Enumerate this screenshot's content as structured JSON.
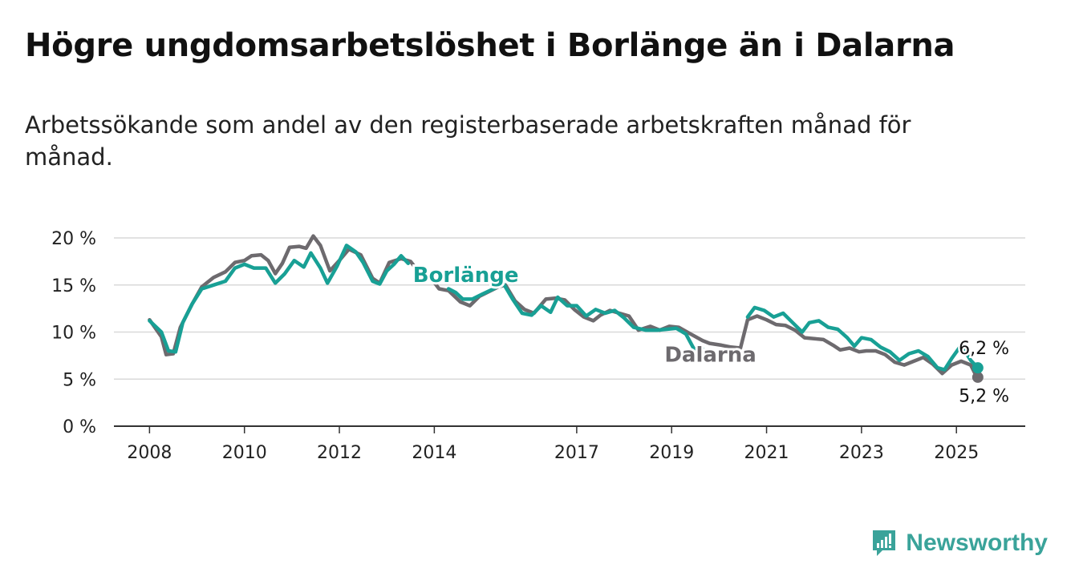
{
  "title": "Högre ungdomsarbetslöshet i Borlänge än i Dalarna",
  "subtitle": "Arbetssökande som andel av den registerbaserade arbetskraften månad för månad.",
  "brand": {
    "name": "Newsworthy",
    "icon": "newsworthy-logo-icon",
    "color": "#3aa39a"
  },
  "chart_data": {
    "type": "line",
    "title": "Högre ungdomsarbetslöshet i Borlänge än i Dalarna",
    "subtitle": "Arbetssökande som andel av den registerbaserade arbetskraften månad för månad.",
    "xlabel": "",
    "ylabel": "",
    "ylim": [
      0,
      20
    ],
    "yticks": [
      0,
      5,
      10,
      15,
      20
    ],
    "ytick_labels": [
      "0 %",
      "5 %",
      "10 %",
      "15 %",
      "20 %"
    ],
    "xticks": [
      2008,
      2010,
      2012,
      2014,
      2017,
      2019,
      2021,
      2023,
      2025
    ],
    "xtick_labels": [
      "2008",
      "2010",
      "2012",
      "2014",
      "2017",
      "2019",
      "2021",
      "2023",
      "2025"
    ],
    "grid": true,
    "series": [
      {
        "name": "Dalarna",
        "color": "#6d6a6e",
        "label_position": "inline",
        "end_label": "5,2 %",
        "points": [
          [
            2008.0,
            11.3
          ],
          [
            2008.25,
            9.5
          ],
          [
            2008.35,
            7.6
          ],
          [
            2008.5,
            7.7
          ],
          [
            2008.65,
            10.5
          ],
          [
            2008.9,
            13.0
          ],
          [
            2009.1,
            14.8
          ],
          [
            2009.35,
            15.8
          ],
          [
            2009.6,
            16.4
          ],
          [
            2009.8,
            17.4
          ],
          [
            2010.0,
            17.6
          ],
          [
            2010.15,
            18.1
          ],
          [
            2010.35,
            18.2
          ],
          [
            2010.5,
            17.6
          ],
          [
            2010.65,
            16.2
          ],
          [
            2010.8,
            17.3
          ],
          [
            2010.95,
            19.0
          ],
          [
            2011.15,
            19.1
          ],
          [
            2011.3,
            18.9
          ],
          [
            2011.45,
            20.2
          ],
          [
            2011.6,
            19.2
          ],
          [
            2011.8,
            16.5
          ],
          [
            2012.0,
            17.6
          ],
          [
            2012.2,
            18.8
          ],
          [
            2012.45,
            18.2
          ],
          [
            2012.7,
            15.7
          ],
          [
            2012.85,
            15.2
          ],
          [
            2013.05,
            17.4
          ],
          [
            2013.3,
            17.8
          ],
          [
            2013.5,
            17.5
          ],
          [
            2013.7,
            16.2
          ],
          [
            2013.95,
            15.6
          ],
          [
            2014.1,
            14.6
          ],
          [
            2014.3,
            14.4
          ],
          [
            2014.55,
            13.2
          ],
          [
            2014.75,
            12.8
          ],
          [
            2014.95,
            13.8
          ],
          [
            2015.15,
            14.3
          ],
          [
            2015.35,
            14.8
          ],
          [
            2015.5,
            15.0
          ],
          [
            2015.7,
            13.3
          ],
          [
            2015.9,
            12.4
          ],
          [
            2016.1,
            12.0
          ],
          [
            2016.35,
            13.5
          ],
          [
            2016.55,
            13.6
          ],
          [
            2016.75,
            13.4
          ],
          [
            2016.95,
            12.4
          ],
          [
            2017.15,
            11.6
          ],
          [
            2017.35,
            11.2
          ],
          [
            2017.5,
            11.8
          ],
          [
            2017.7,
            12.3
          ],
          [
            2017.9,
            12.0
          ],
          [
            2018.1,
            11.7
          ],
          [
            2018.3,
            10.2
          ],
          [
            2018.55,
            10.6
          ],
          [
            2018.75,
            10.2
          ],
          [
            2018.95,
            10.6
          ],
          [
            2019.15,
            10.5
          ],
          [
            2019.4,
            9.8
          ],
          [
            2019.65,
            9.1
          ],
          [
            2019.8,
            8.8
          ],
          [
            2020.05,
            8.6
          ],
          [
            2020.25,
            8.4
          ],
          [
            2020.45,
            8.3
          ],
          [
            2020.6,
            11.3
          ],
          [
            2020.8,
            11.7
          ],
          [
            2021.0,
            11.3
          ],
          [
            2021.2,
            10.8
          ],
          [
            2021.4,
            10.7
          ],
          [
            2021.6,
            10.2
          ],
          [
            2021.8,
            9.4
          ],
          [
            2022.0,
            9.3
          ],
          [
            2022.2,
            9.2
          ],
          [
            2022.4,
            8.6
          ],
          [
            2022.55,
            8.1
          ],
          [
            2022.75,
            8.3
          ],
          [
            2022.95,
            7.9
          ],
          [
            2023.1,
            8.0
          ],
          [
            2023.3,
            8.0
          ],
          [
            2023.5,
            7.6
          ],
          [
            2023.7,
            6.8
          ],
          [
            2023.9,
            6.5
          ],
          [
            2024.1,
            6.9
          ],
          [
            2024.3,
            7.3
          ],
          [
            2024.5,
            6.6
          ],
          [
            2024.7,
            5.6
          ],
          [
            2024.9,
            6.5
          ],
          [
            2025.1,
            6.9
          ],
          [
            2025.3,
            6.5
          ],
          [
            2025.4,
            5.5
          ],
          [
            2025.45,
            5.2
          ]
        ]
      },
      {
        "name": "Borlänge",
        "color": "#18a095",
        "label_position": "inline",
        "end_label": "6,2 %",
        "points": [
          [
            2008.0,
            11.2
          ],
          [
            2008.25,
            10.0
          ],
          [
            2008.4,
            8.0
          ],
          [
            2008.55,
            7.9
          ],
          [
            2008.7,
            11.0
          ],
          [
            2008.9,
            13.0
          ],
          [
            2009.1,
            14.6
          ],
          [
            2009.35,
            15.0
          ],
          [
            2009.6,
            15.4
          ],
          [
            2009.8,
            16.8
          ],
          [
            2010.0,
            17.2
          ],
          [
            2010.2,
            16.8
          ],
          [
            2010.45,
            16.8
          ],
          [
            2010.65,
            15.2
          ],
          [
            2010.85,
            16.2
          ],
          [
            2011.05,
            17.6
          ],
          [
            2011.25,
            16.9
          ],
          [
            2011.4,
            18.4
          ],
          [
            2011.6,
            16.8
          ],
          [
            2011.75,
            15.2
          ],
          [
            2011.95,
            17.0
          ],
          [
            2012.15,
            19.2
          ],
          [
            2012.35,
            18.5
          ],
          [
            2012.5,
            17.4
          ],
          [
            2012.7,
            15.4
          ],
          [
            2012.85,
            15.1
          ],
          [
            2013.0,
            16.5
          ],
          [
            2013.15,
            17.2
          ],
          [
            2013.3,
            18.1
          ],
          [
            2013.45,
            17.3
          ],
          [
            2014.3,
            14.6
          ],
          [
            2014.45,
            14.2
          ],
          [
            2014.6,
            13.5
          ],
          [
            2014.8,
            13.5
          ],
          [
            2015.0,
            14.0
          ],
          [
            2015.25,
            14.6
          ],
          [
            2015.45,
            15.2
          ],
          [
            2015.65,
            13.5
          ],
          [
            2015.85,
            12.0
          ],
          [
            2016.05,
            11.8
          ],
          [
            2016.25,
            12.8
          ],
          [
            2016.45,
            12.1
          ],
          [
            2016.6,
            13.7
          ],
          [
            2016.8,
            12.8
          ],
          [
            2017.0,
            12.8
          ],
          [
            2017.2,
            11.7
          ],
          [
            2017.4,
            12.4
          ],
          [
            2017.6,
            12.0
          ],
          [
            2017.8,
            12.3
          ],
          [
            2018.0,
            11.5
          ],
          [
            2018.2,
            10.5
          ],
          [
            2018.45,
            10.2
          ],
          [
            2018.7,
            10.2
          ],
          [
            2018.9,
            10.3
          ],
          [
            2019.1,
            10.4
          ],
          [
            2019.3,
            9.8
          ],
          [
            2019.45,
            8.4
          ],
          [
            2019.55,
            7.7
          ],
          [
            2019.65,
            8.2
          ],
          [
            2020.6,
            11.6
          ],
          [
            2020.75,
            12.6
          ],
          [
            2020.95,
            12.3
          ],
          [
            2021.15,
            11.6
          ],
          [
            2021.35,
            12.0
          ],
          [
            2021.55,
            11.0
          ],
          [
            2021.75,
            10.0
          ],
          [
            2021.9,
            11.0
          ],
          [
            2022.1,
            11.2
          ],
          [
            2022.3,
            10.5
          ],
          [
            2022.5,
            10.3
          ],
          [
            2022.7,
            9.4
          ],
          [
            2022.85,
            8.5
          ],
          [
            2023.0,
            9.4
          ],
          [
            2023.2,
            9.2
          ],
          [
            2023.4,
            8.4
          ],
          [
            2023.6,
            7.9
          ],
          [
            2023.8,
            7.0
          ],
          [
            2024.0,
            7.7
          ],
          [
            2024.2,
            8.0
          ],
          [
            2024.4,
            7.4
          ],
          [
            2024.6,
            6.2
          ],
          [
            2024.75,
            6.0
          ],
          [
            2024.9,
            7.2
          ],
          [
            2025.1,
            8.6
          ],
          [
            2025.3,
            7.0
          ],
          [
            2025.45,
            6.2
          ]
        ]
      }
    ]
  }
}
